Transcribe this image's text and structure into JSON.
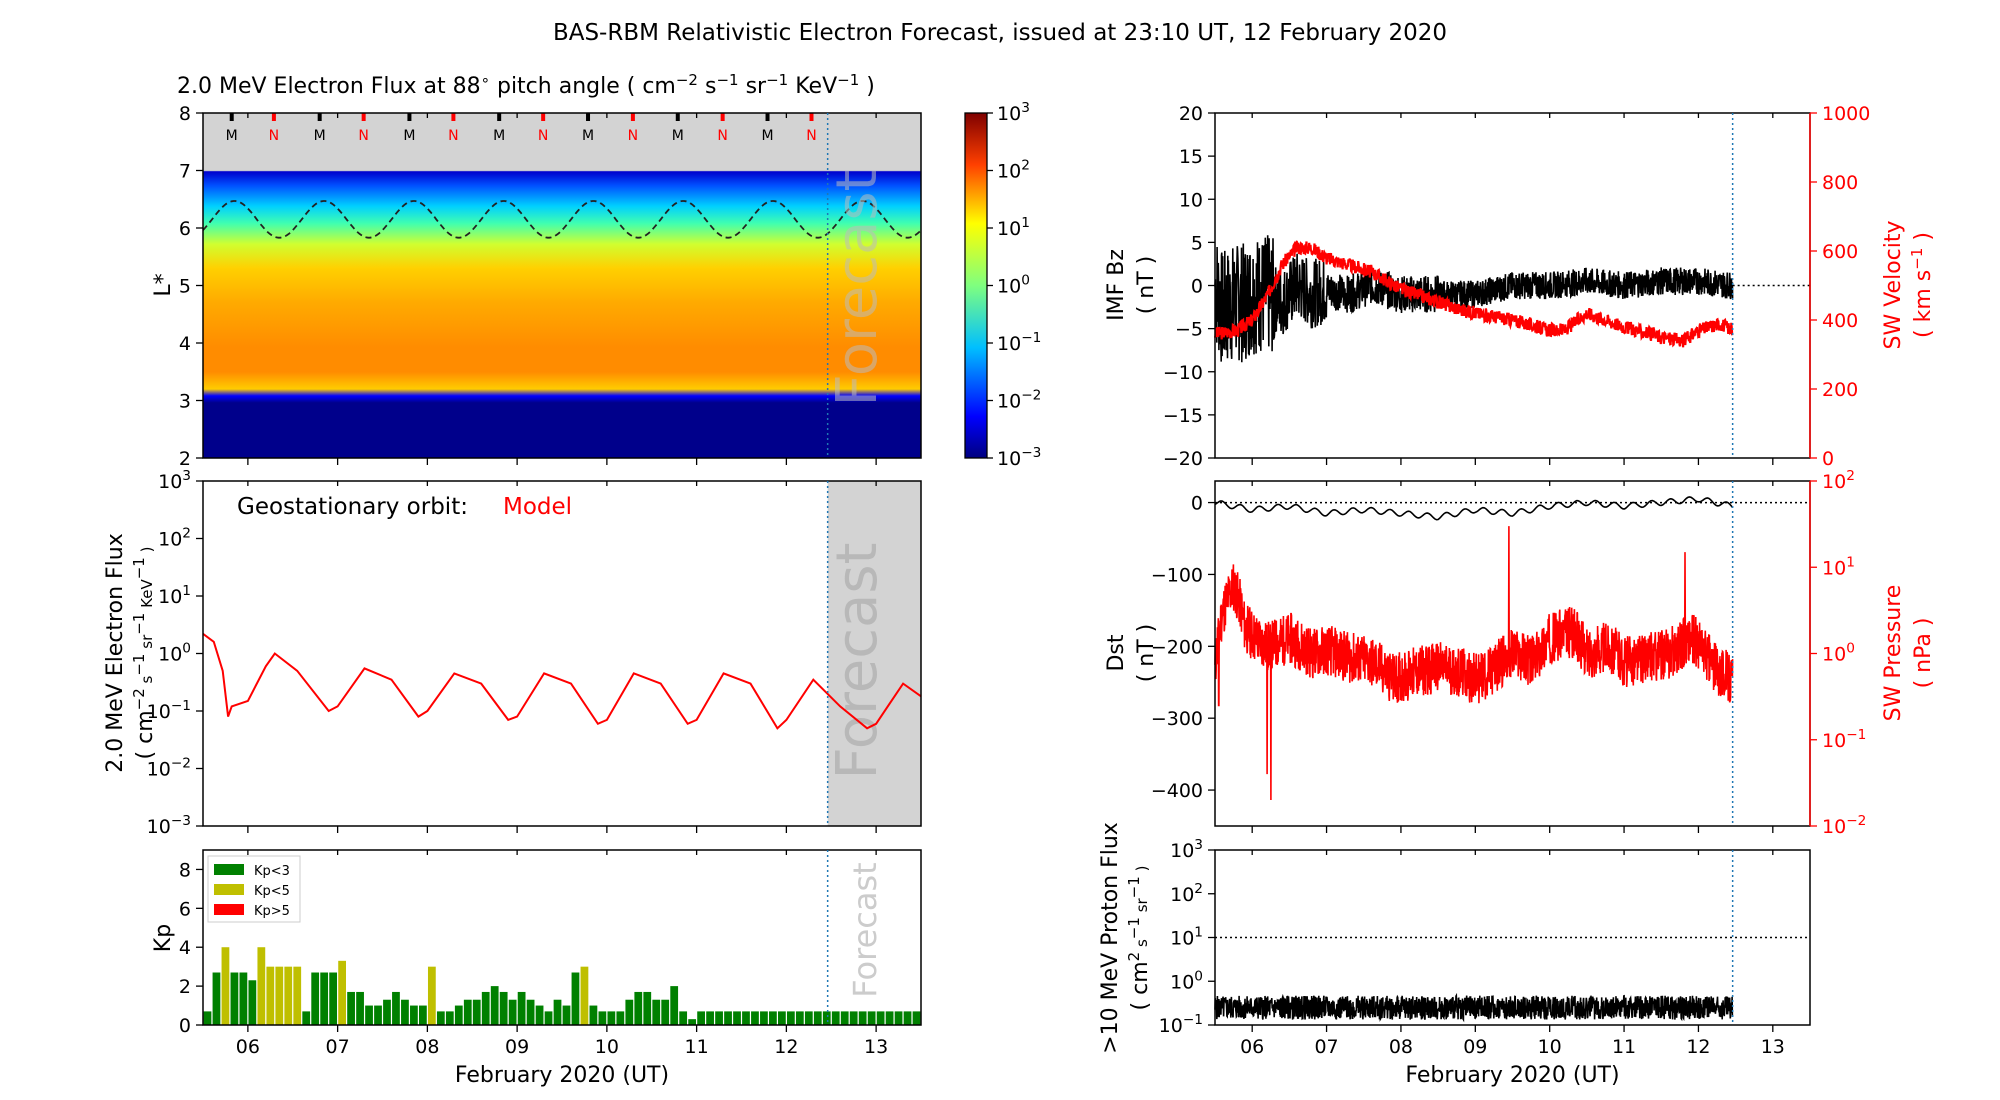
{
  "title": "BAS-RBM Relativistic Electron Forecast, issued at 23:10 UT, 12 February 2020",
  "colors": {
    "model": "#ff0000",
    "sw": "#ff0000",
    "kp_low": "#008000",
    "kp_mid": "#bfbf00",
    "kp_high": "#ff0000",
    "forecast_band": "#d3d3d3",
    "forecast_line": "#1f77b4"
  },
  "time_axis": {
    "ticks": [
      "06",
      "07",
      "08",
      "09",
      "10",
      "11",
      "12",
      "13"
    ],
    "xlim_days": [
      5.5,
      13.5
    ],
    "issue_day": 12.46,
    "xlabel": "February 2020 (UT)"
  },
  "chart_data": [
    {
      "type": "heatmap",
      "id": "flux_map",
      "title_prefix": "2.0 MeV Electron Flux at 88",
      "title_units": "pitch angle (",
      "ylabel": "L*",
      "ylim": [
        2,
        8
      ],
      "yticks": [
        "2",
        "3",
        "4",
        "5",
        "6",
        "7",
        "8"
      ],
      "annotation": "Forecast",
      "colorbar": {
        "ticks": [
          "10",
          "10",
          "10",
          "10",
          "10",
          "10",
          "10"
        ],
        "exponents": [
          "3",
          "2",
          "1",
          "0",
          "−1",
          "−2",
          "−3"
        ],
        "range": [
          0.001,
          1000
        ],
        "scale": "log"
      },
      "markers": [
        {
          "label": "M",
          "x": 5.82
        },
        {
          "label": "N",
          "x": 6.29
        },
        {
          "label": "M",
          "x": 6.8
        },
        {
          "label": "N",
          "x": 7.29
        },
        {
          "label": "M",
          "x": 7.8
        },
        {
          "label": "N",
          "x": 8.29
        },
        {
          "label": "M",
          "x": 8.8
        },
        {
          "label": "N",
          "x": 9.29
        },
        {
          "label": "M",
          "x": 9.79
        },
        {
          "label": "N",
          "x": 10.29
        },
        {
          "label": "M",
          "x": 10.79
        },
        {
          "label": "N",
          "x": 11.29
        },
        {
          "label": "M",
          "x": 11.79
        },
        {
          "label": "N",
          "x": 12.28
        }
      ],
      "dashed_line": {
        "mean": 6.15,
        "amplitude": 0.32,
        "period_days": 1.0
      }
    },
    {
      "type": "line",
      "id": "geo_flux",
      "ylabel_line1": "2.0 MeV Electron Flux",
      "ylabel_line2": "( cm",
      "annotation": "Forecast",
      "legend_prefix": "Geostationary orbit:",
      "legend_model": "Model",
      "ylim": [
        0.001,
        1000
      ],
      "scale": "log",
      "yticks": [
        "10",
        "10",
        "10",
        "10",
        "10",
        "10",
        "10"
      ],
      "yexp": [
        "3",
        "2",
        "1",
        "0",
        "−1",
        "−2",
        "−3"
      ],
      "series": [
        {
          "x": [
            5.5,
            5.62,
            5.72,
            5.78,
            5.82,
            6.0,
            6.2,
            6.3,
            6.55,
            6.9,
            7.0,
            7.3,
            7.6,
            7.9,
            8.0,
            8.3,
            8.6,
            8.9,
            9.0,
            9.3,
            9.6,
            9.9,
            10.0,
            10.3,
            10.6,
            10.9,
            11.0,
            11.3,
            11.6,
            11.9,
            12.0,
            12.3,
            12.6,
            12.9,
            13.0,
            13.3,
            13.5
          ],
          "y": [
            2.2,
            1.6,
            0.5,
            0.08,
            0.12,
            0.15,
            0.6,
            1.0,
            0.5,
            0.1,
            0.12,
            0.55,
            0.35,
            0.08,
            0.1,
            0.45,
            0.3,
            0.07,
            0.08,
            0.45,
            0.3,
            0.06,
            0.07,
            0.45,
            0.3,
            0.06,
            0.07,
            0.45,
            0.3,
            0.05,
            0.07,
            0.35,
            0.12,
            0.05,
            0.06,
            0.3,
            0.18
          ]
        }
      ]
    },
    {
      "type": "bar",
      "id": "kp",
      "ylabel": "Kp",
      "ylim": [
        0,
        9
      ],
      "yticks": [
        "0",
        "2",
        "4",
        "6",
        "8"
      ],
      "annotation": "Forecast",
      "legend": [
        {
          "label": "Kp<3",
          "color": "#008000"
        },
        {
          "label": "Kp<5",
          "color": "#bfbf00"
        },
        {
          "label": "Kp>5",
          "color": "#ff0000"
        }
      ],
      "bar_width_days": 0.1,
      "x_start": 5.5,
      "values": [
        0.7,
        2.7,
        4.0,
        2.7,
        2.7,
        2.3,
        4.0,
        3.0,
        3.0,
        3.0,
        3.0,
        0.7,
        2.7,
        2.7,
        2.7,
        3.3,
        1.7,
        1.7,
        1.0,
        1.0,
        1.3,
        1.7,
        1.3,
        1.0,
        1.0,
        3.0,
        0.7,
        0.7,
        1.0,
        1.3,
        1.3,
        1.7,
        2.0,
        1.7,
        1.3,
        1.7,
        1.3,
        1.0,
        0.7,
        1.3,
        1.0,
        2.7,
        3.0,
        1.0,
        0.7,
        0.7,
        0.7,
        1.3,
        1.7,
        1.7,
        1.3,
        1.3,
        2.0,
        0.7,
        0.3,
        0.7,
        0.7,
        0.7,
        0.7,
        0.7,
        0.7,
        0.7,
        0.7,
        0.7,
        0.7,
        0.7,
        0.7,
        0.7,
        0.7,
        0.7,
        0.7,
        0.7,
        0.7,
        0.7,
        0.7,
        0.7,
        0.7,
        0.7,
        0.7,
        0.7
      ]
    },
    {
      "type": "line",
      "id": "imf_bz",
      "ylabel_line1": "IMF Bz",
      "ylabel_line2": "( nT )",
      "ylim": [
        -20,
        20
      ],
      "yticks": [
        "−20",
        "−15",
        "−10",
        "−5",
        "0",
        "5",
        "10",
        "15",
        "20"
      ],
      "right_ylabel_line1": "SW Velocity",
      "right_ylabel_line2": "( km s",
      "right_ylim": [
        0,
        1000
      ],
      "right_yticks": [
        "0",
        "200",
        "400",
        "600",
        "800",
        "1000"
      ],
      "series": [
        {
          "x": [
            5.5,
            5.6,
            5.75,
            5.9,
            6.0,
            6.2,
            6.4,
            6.6,
            6.8,
            7.0,
            7.3,
            7.6,
            8.0,
            8.4,
            8.8,
            9.0,
            9.5,
            10.0,
            10.5,
            11.0,
            11.5,
            12.0,
            12.46
          ],
          "y": [
            0,
            -3,
            -2,
            -2,
            -1,
            -1,
            -2,
            0,
            -1,
            -0.5,
            -1,
            0,
            -1,
            -1,
            -1,
            -1,
            0,
            0,
            0.5,
            0,
            0.5,
            0.5,
            0
          ]
        },
        {
          "x": [
            5.5,
            5.8,
            6.0,
            6.2,
            6.4,
            6.6,
            6.8,
            7.0,
            7.3,
            7.6,
            8.0,
            8.4,
            8.8,
            9.0,
            9.5,
            10.0,
            10.2,
            10.5,
            11.0,
            11.5,
            11.8,
            12.0,
            12.3,
            12.46
          ],
          "y": [
            360,
            370,
            400,
            470,
            560,
            610,
            610,
            580,
            560,
            540,
            490,
            460,
            430,
            420,
            400,
            370,
            370,
            420,
            380,
            350,
            340,
            370,
            390,
            370
          ]
        }
      ]
    },
    {
      "type": "line",
      "id": "dst",
      "ylabel_line1": "Dst",
      "ylabel_line2": "( nT )",
      "ylim": [
        -450,
        30
      ],
      "yticks": [
        "−400",
        "−300",
        "−200",
        "−100",
        "0"
      ],
      "right_ylabel_line1": "SW Pressure",
      "right_ylabel_line2": "( nPa )",
      "right_ylim": [
        0.01,
        100
      ],
      "right_yticks": [
        "10",
        "10",
        "10",
        "10",
        "10"
      ],
      "right_yexp": [
        "2",
        "1",
        "0",
        "−1",
        "−2"
      ],
      "series": [
        {
          "x": [
            5.5,
            6.0,
            6.5,
            7.0,
            7.5,
            8.0,
            8.5,
            9.0,
            9.5,
            10.0,
            10.5,
            11.0,
            11.5,
            12.0,
            12.46
          ],
          "y": [
            0,
            -10,
            -5,
            -15,
            -10,
            -15,
            -20,
            -10,
            -15,
            -5,
            0,
            -5,
            0,
            5,
            -5
          ]
        },
        {
          "x": [
            5.5,
            5.65,
            5.75,
            5.9,
            6.05,
            6.2,
            6.5,
            6.8,
            7.0,
            7.3,
            7.6,
            7.9,
            8.2,
            8.5,
            8.8,
            9.0,
            9.2,
            9.5,
            9.8,
            10.0,
            10.3,
            10.5,
            10.8,
            11.0,
            11.3,
            11.6,
            11.9,
            12.2,
            12.46
          ],
          "y": [
            0.6,
            4,
            6,
            2,
            1.5,
            1.2,
            1.5,
            1.0,
            1.1,
            0.9,
            0.8,
            0.5,
            0.6,
            0.7,
            0.6,
            0.5,
            0.6,
            1.0,
            0.8,
            1.5,
            1.8,
            1.0,
            1.2,
            0.8,
            0.9,
            1.0,
            1.5,
            0.7,
            0.5
          ]
        }
      ]
    },
    {
      "type": "line",
      "id": "proton",
      "ylabel_line1": ">10 MeV Proton Flux",
      "ylabel_line2": "( cm",
      "ylim": [
        0.1,
        1000
      ],
      "scale": "log",
      "yticks": [
        "10",
        "10",
        "10",
        "10",
        "10"
      ],
      "yexp": [
        "−1",
        "0",
        "1",
        "2",
        "3"
      ],
      "threshold": 10,
      "series": [
        {
          "x": [
            5.5,
            12.46
          ],
          "y": [
            0.25,
            0.25
          ]
        }
      ]
    }
  ]
}
